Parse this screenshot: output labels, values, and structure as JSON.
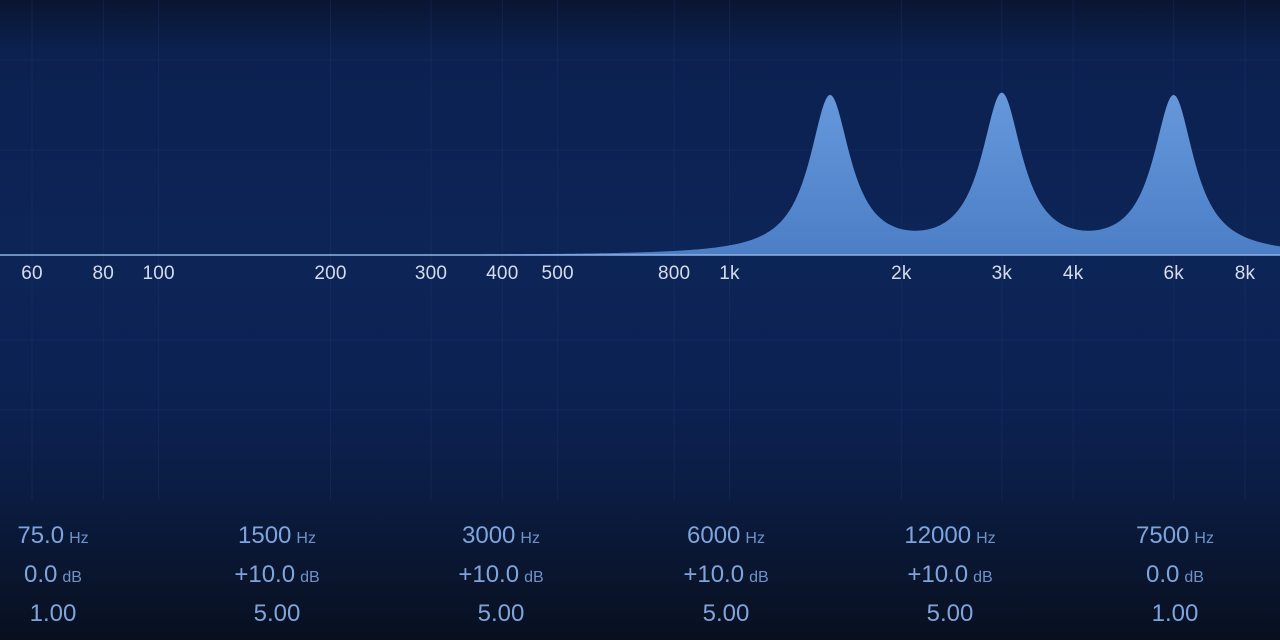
{
  "colors": {
    "curve_fill": "#5b8fd6",
    "baseline": "#8fb2e6",
    "text_primary": "#d6dcea",
    "text_band": "#7fa4dc"
  },
  "axis": {
    "scale": "log",
    "range_hz": [
      50,
      10000
    ],
    "ticks": [
      {
        "hz": 60,
        "label": "60"
      },
      {
        "hz": 80,
        "label": "80"
      },
      {
        "hz": 100,
        "label": "100"
      },
      {
        "hz": 200,
        "label": "200"
      },
      {
        "hz": 300,
        "label": "300"
      },
      {
        "hz": 400,
        "label": "400"
      },
      {
        "hz": 500,
        "label": "500"
      },
      {
        "hz": 800,
        "label": "800"
      },
      {
        "hz": 1000,
        "label": "1k"
      },
      {
        "hz": 2000,
        "label": "2k"
      },
      {
        "hz": 3000,
        "label": "3k"
      },
      {
        "hz": 4000,
        "label": "4k"
      },
      {
        "hz": 6000,
        "label": "6k"
      },
      {
        "hz": 8000,
        "label": "8k"
      }
    ]
  },
  "bands": [
    {
      "freq": "75.0",
      "freq_unit": "Hz",
      "gain": "0.0",
      "gain_unit": "dB",
      "q": "1.00"
    },
    {
      "freq": "1500",
      "freq_unit": "Hz",
      "gain": "+10.0",
      "gain_unit": "dB",
      "q": "5.00"
    },
    {
      "freq": "3000",
      "freq_unit": "Hz",
      "gain": "+10.0",
      "gain_unit": "dB",
      "q": "5.00"
    },
    {
      "freq": "6000",
      "freq_unit": "Hz",
      "gain": "+10.0",
      "gain_unit": "dB",
      "q": "5.00"
    },
    {
      "freq": "12000",
      "freq_unit": "Hz",
      "gain": "+10.0",
      "gain_unit": "dB",
      "q": "5.00"
    },
    {
      "freq": "7500",
      "freq_unit": "Hz",
      "gain": "0.0",
      "gain_unit": "dB",
      "q": "1.00"
    }
  ],
  "curve_peaks": [
    {
      "hz": 1500,
      "gain_db": 10,
      "q": 5
    },
    {
      "hz": 3000,
      "gain_db": 10,
      "q": 5
    },
    {
      "hz": 6000,
      "gain_db": 10,
      "q": 5
    }
  ]
}
